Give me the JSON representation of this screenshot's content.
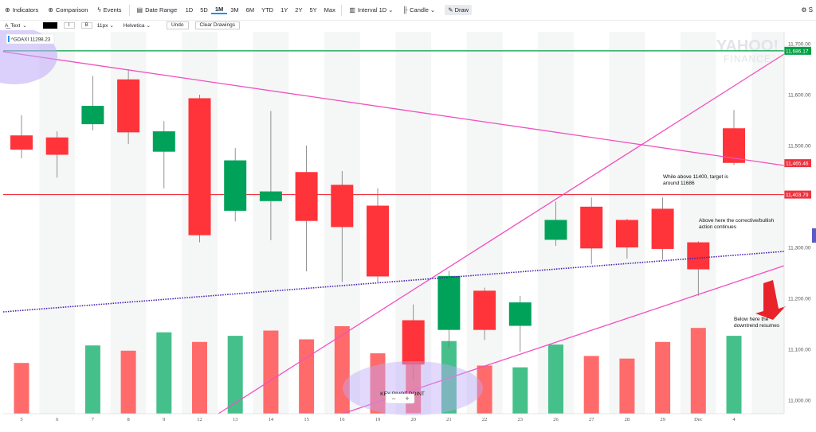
{
  "toolbar": {
    "indicators": "Indicators",
    "comparison": "Comparison",
    "events": "Events",
    "date_range": "Date Range",
    "ranges": [
      "1D",
      "5D",
      "1M",
      "3M",
      "6M",
      "YTD",
      "1Y",
      "2Y",
      "5Y",
      "Max"
    ],
    "active_range": "1M",
    "interval": "Interval 1D",
    "chart_type": "Candle",
    "draw": "Draw",
    "settings_icon": "gear-icon"
  },
  "drawbar": {
    "tool": "Text",
    "color": "#000000",
    "italic": "I",
    "bold": "B",
    "font_size": "11px",
    "font_family": "Helvetica",
    "undo": "Undo",
    "clear": "Clear Drawings"
  },
  "legend": {
    "ticker": "^GDAXI 11298.23"
  },
  "watermark": {
    "line1": "YAHOO!",
    "line2": "FINANCE"
  },
  "chart_data": {
    "type": "candlestick",
    "ticker": "^GDAXI",
    "x_labels": [
      "5",
      "6",
      "7",
      "8",
      "9",
      "12",
      "13",
      "14",
      "15",
      "16",
      "19",
      "20",
      "21",
      "22",
      "23",
      "26",
      "27",
      "28",
      "29",
      "Dec",
      "4"
    ],
    "candles": [
      {
        "o": 11520,
        "h": 11560,
        "l": 11475,
        "c": 11492,
        "dir": "down"
      },
      {
        "o": 11516,
        "h": 11528,
        "l": 11437,
        "c": 11482,
        "dir": "down"
      },
      {
        "o": 11542,
        "h": 11637,
        "l": 11530,
        "c": 11578,
        "dir": "up"
      },
      {
        "o": 11630,
        "h": 11650,
        "l": 11503,
        "c": 11526,
        "dir": "down"
      },
      {
        "o": 11488,
        "h": 11548,
        "l": 11416,
        "c": 11528,
        "dir": "up"
      },
      {
        "o": 11593,
        "h": 11600,
        "l": 11310,
        "c": 11324,
        "dir": "down"
      },
      {
        "o": 11372,
        "h": 11495,
        "l": 11351,
        "c": 11471,
        "dir": "up"
      },
      {
        "o": 11391,
        "h": 11568,
        "l": 11314,
        "c": 11410,
        "dir": "up"
      },
      {
        "o": 11448,
        "h": 11500,
        "l": 11253,
        "c": 11352,
        "dir": "down"
      },
      {
        "o": 11423,
        "h": 11450,
        "l": 11232,
        "c": 11340,
        "dir": "down"
      },
      {
        "o": 11382,
        "h": 11416,
        "l": 11232,
        "c": 11243,
        "dir": "down"
      },
      {
        "o": 11157,
        "h": 11188,
        "l": 11038,
        "c": 11070,
        "dir": "down"
      },
      {
        "o": 11138,
        "h": 11254,
        "l": 11102,
        "c": 11244,
        "dir": "up"
      },
      {
        "o": 11215,
        "h": 11221,
        "l": 11118,
        "c": 11138,
        "dir": "down"
      },
      {
        "o": 11146,
        "h": 11205,
        "l": 11095,
        "c": 11192,
        "dir": "up"
      },
      {
        "o": 11315,
        "h": 11390,
        "l": 11303,
        "c": 11354,
        "dir": "up"
      },
      {
        "o": 11380,
        "h": 11398,
        "l": 11267,
        "c": 11298,
        "dir": "down"
      },
      {
        "o": 11354,
        "h": 11356,
        "l": 11278,
        "c": 11300,
        "dir": "down"
      },
      {
        "o": 11376,
        "h": 11398,
        "l": 11276,
        "c": 11297,
        "dir": "down"
      },
      {
        "o": 11310,
        "h": 11312,
        "l": 11205,
        "c": 11257,
        "dir": "down"
      },
      {
        "o": 11534,
        "h": 11570,
        "l": 11462,
        "c": 11466,
        "dir": "down"
      }
    ],
    "volume_colors": [
      "down",
      "down",
      "up",
      "down",
      "up",
      "down",
      "up",
      "down",
      "down",
      "down",
      "down",
      "down",
      "up",
      "down",
      "up",
      "up",
      "down",
      "down",
      "down",
      "down",
      "up"
    ],
    "volume_heights": [
      0.58,
      0,
      0.78,
      0.72,
      0.93,
      0.82,
      0.89,
      0.95,
      0.85,
      1.0,
      0.69,
      0.86,
      0.83,
      0.55,
      0.53,
      0.79,
      0.66,
      0.63,
      0.82,
      0.98,
      0.89
    ],
    "y_ticks": [
      "11,700.00",
      "11,600.00",
      "11,500.00",
      "11,400.00",
      "11,300.00",
      "11,200.00",
      "11,100.00",
      "11,000.00"
    ],
    "y_range": [
      10985,
      11715
    ],
    "price_markers": [
      {
        "label": "11,686.17",
        "color": "#00a045"
      },
      {
        "label": "11,465.46",
        "color": "#ef3340"
      },
      {
        "label": "11,403.79",
        "color": "#ef3340"
      }
    ],
    "annotations": [
      {
        "text": "While above 11400, target is around 11686"
      },
      {
        "text": "Above here the corrective/bullish action continues"
      },
      {
        "text": "Below here the downtrend resumes"
      },
      {
        "text": "KEY PIVOT POINT"
      }
    ],
    "grid": "vertical-bands",
    "colors": {
      "up": "#00a25a",
      "down": "#ff333a",
      "vol_up": "#45c08a",
      "vol_down": "#ff6b6b",
      "trend": "#f24fc0",
      "dotted": "#4a1fb0",
      "hline_green": "#00a045",
      "hline_red": "#ef3340"
    }
  }
}
